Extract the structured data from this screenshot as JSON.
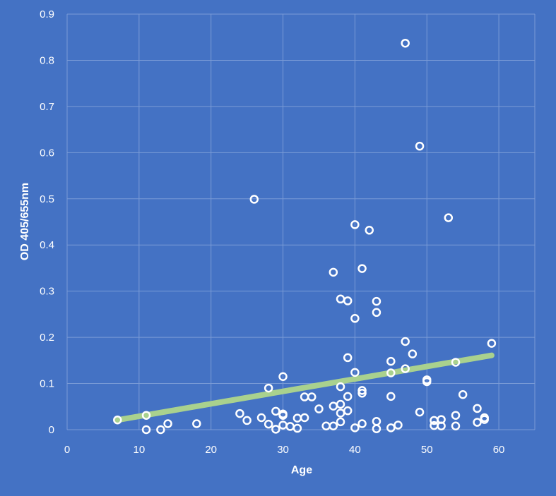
{
  "colors": {
    "background": "#4472C4",
    "gridline": "#7A9BD6",
    "marker_stroke": "#FFFFFF",
    "trendline": "#A9D18E",
    "text": "#FFFFFF"
  },
  "chart_data": {
    "type": "scatter",
    "title": "",
    "xlabel": "Age",
    "ylabel": "OD 405/655nm",
    "xlim": [
      0,
      65
    ],
    "ylim": [
      0,
      0.9
    ],
    "x_ticks": [
      0,
      10,
      20,
      30,
      40,
      50,
      60
    ],
    "y_ticks": [
      0,
      0.1,
      0.2,
      0.3,
      0.4,
      0.5,
      0.6,
      0.7,
      0.8,
      0.9
    ],
    "x_tick_labels": [
      "0",
      "10",
      "20",
      "30",
      "40",
      "50",
      "60"
    ],
    "y_tick_labels": [
      "0",
      "0.1",
      "0.2",
      "0.3",
      "0.4",
      "0.5",
      "0.6",
      "0.7",
      "0.8",
      "0.9"
    ],
    "grid": true,
    "legend": "none",
    "series": [
      {
        "marker": "hollow-circle",
        "points": [
          [
            7,
            0.021
          ],
          [
            11,
            0.031
          ],
          [
            11,
            0.0
          ],
          [
            13,
            0.0
          ],
          [
            14,
            0.013
          ],
          [
            18,
            0.013
          ],
          [
            24,
            0.035
          ],
          [
            25,
            0.02
          ],
          [
            26,
            0.499
          ],
          [
            27,
            0.026
          ],
          [
            28,
            0.09
          ],
          [
            28,
            0.012
          ],
          [
            29,
            0.04
          ],
          [
            29,
            0.001
          ],
          [
            30,
            0.115
          ],
          [
            30,
            0.034
          ],
          [
            30,
            0.031
          ],
          [
            30,
            0.01
          ],
          [
            31,
            0.007
          ],
          [
            32,
            0.025
          ],
          [
            32,
            0.003
          ],
          [
            33,
            0.071
          ],
          [
            33,
            0.026
          ],
          [
            34,
            0.071
          ],
          [
            35,
            0.045
          ],
          [
            36,
            0.008
          ],
          [
            37,
            0.341
          ],
          [
            37,
            0.051
          ],
          [
            37,
            0.008
          ],
          [
            38,
            0.283
          ],
          [
            38,
            0.093
          ],
          [
            38,
            0.055
          ],
          [
            38,
            0.036
          ],
          [
            38,
            0.017
          ],
          [
            39,
            0.279
          ],
          [
            39,
            0.156
          ],
          [
            39,
            0.072
          ],
          [
            39,
            0.041
          ],
          [
            40,
            0.444
          ],
          [
            40,
            0.241
          ],
          [
            40,
            0.124
          ],
          [
            40,
            0.004
          ],
          [
            41,
            0.349
          ],
          [
            41,
            0.085
          ],
          [
            41,
            0.079
          ],
          [
            41,
            0.013
          ],
          [
            42,
            0.432
          ],
          [
            43,
            0.278
          ],
          [
            43,
            0.254
          ],
          [
            43,
            0.018
          ],
          [
            43,
            0.002
          ],
          [
            45,
            0.148
          ],
          [
            45,
            0.123
          ],
          [
            45,
            0.072
          ],
          [
            45,
            0.004
          ],
          [
            46,
            0.01
          ],
          [
            47,
            0.837
          ],
          [
            47,
            0.191
          ],
          [
            47,
            0.132
          ],
          [
            48,
            0.164
          ],
          [
            49,
            0.614
          ],
          [
            49,
            0.038
          ],
          [
            50,
            0.108
          ],
          [
            50,
            0.104
          ],
          [
            51,
            0.02
          ],
          [
            51,
            0.009
          ],
          [
            52,
            0.022
          ],
          [
            52,
            0.008
          ],
          [
            53,
            0.459
          ],
          [
            54,
            0.146
          ],
          [
            54,
            0.031
          ],
          [
            54,
            0.008
          ],
          [
            55,
            0.076
          ],
          [
            57,
            0.046
          ],
          [
            57,
            0.016
          ],
          [
            58,
            0.026
          ],
          [
            58,
            0.022
          ],
          [
            59,
            0.187
          ]
        ]
      }
    ],
    "trendline": {
      "type": "linear",
      "x_range": [
        7,
        59
      ],
      "y_start": 0.021,
      "y_end": 0.161
    }
  }
}
